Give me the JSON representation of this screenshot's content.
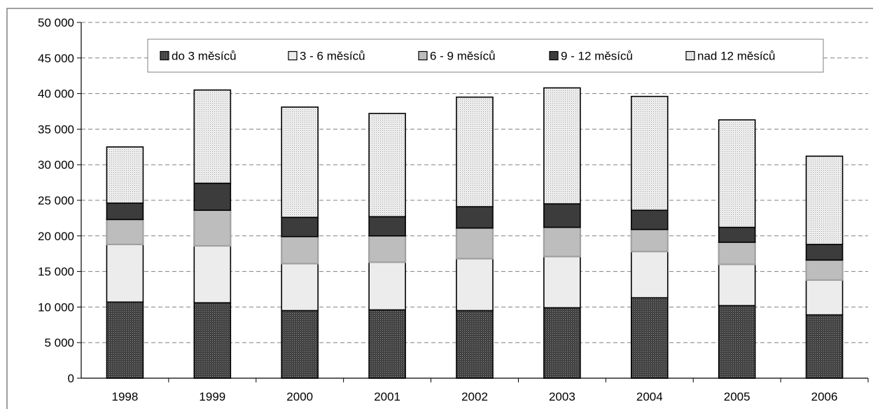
{
  "chart_data": {
    "type": "bar",
    "stacked": true,
    "title": "",
    "xlabel": "",
    "ylabel": "",
    "categories": [
      "1998",
      "1999",
      "2000",
      "2001",
      "2002",
      "2003",
      "2004",
      "2005",
      "2006"
    ],
    "series": [
      {
        "name": "do 3 měsíců",
        "pattern": "dense-dots-dark",
        "values": [
          10700,
          10600,
          9500,
          9600,
          9500,
          9900,
          11300,
          10200,
          8900
        ]
      },
      {
        "name": "3 - 6 měsíců",
        "pattern": "light-fill",
        "values": [
          8100,
          8000,
          6600,
          6700,
          7300,
          7200,
          6500,
          5800,
          4900
        ]
      },
      {
        "name": "6 - 9 měsíců",
        "pattern": "gray-fill",
        "values": [
          3500,
          5000,
          3800,
          3700,
          4300,
          4100,
          3100,
          3100,
          2800
        ]
      },
      {
        "name": "9 - 12 měsíců",
        "pattern": "dark-fill",
        "values": [
          2300,
          3800,
          2700,
          2700,
          3000,
          3300,
          2700,
          2100,
          2200
        ]
      },
      {
        "name": "nad 12 měsíců",
        "pattern": "light-dots",
        "values": [
          7900,
          13100,
          15500,
          14500,
          15400,
          16300,
          16000,
          15100,
          12400
        ]
      }
    ],
    "ylim": [
      0,
      50000
    ],
    "yticks": [
      {
        "value": 0,
        "label": "0"
      },
      {
        "value": 5000,
        "label": "5 000"
      },
      {
        "value": 10000,
        "label": "10 000"
      },
      {
        "value": 15000,
        "label": "15 000"
      },
      {
        "value": 20000,
        "label": "20 000"
      },
      {
        "value": 25000,
        "label": "25 000"
      },
      {
        "value": 30000,
        "label": "30 000"
      },
      {
        "value": 35000,
        "label": "35 000"
      },
      {
        "value": 40000,
        "label": "40 000"
      },
      {
        "value": 45000,
        "label": "45 000"
      },
      {
        "value": 50000,
        "label": "50 000"
      }
    ],
    "grid": true,
    "legend_position": "top",
    "colors": {
      "background": "#ffffff",
      "frame": "#808080",
      "grid": "#808080",
      "bar_stroke": "#000000",
      "highlight_stroke": "#a0a0a0"
    }
  }
}
